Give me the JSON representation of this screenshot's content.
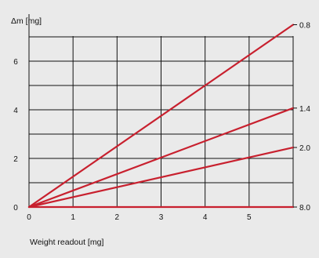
{
  "chart_data": {
    "type": "line",
    "title": "",
    "xlabel": "Weight readout [mg]",
    "ylabel": "Δm [mg]",
    "xlim": [
      0,
      6
    ],
    "ylim": [
      0,
      7.5
    ],
    "x_ticks": [
      "0",
      "1",
      "2",
      "3",
      "4",
      "5"
    ],
    "y_ticks": [
      "0",
      "2",
      "4",
      "6"
    ],
    "grid": true,
    "series_color": "#c8202e",
    "series": [
      {
        "name": "0.8",
        "x": [
          0,
          6
        ],
        "y": [
          0,
          7.5
        ]
      },
      {
        "name": "1.4",
        "x": [
          0,
          6
        ],
        "y": [
          0,
          4.07
        ]
      },
      {
        "name": "2.0",
        "x": [
          0,
          6
        ],
        "y": [
          0,
          2.45
        ]
      },
      {
        "name": "8.0",
        "x": [
          0,
          6
        ],
        "y": [
          0,
          0
        ]
      }
    ]
  }
}
